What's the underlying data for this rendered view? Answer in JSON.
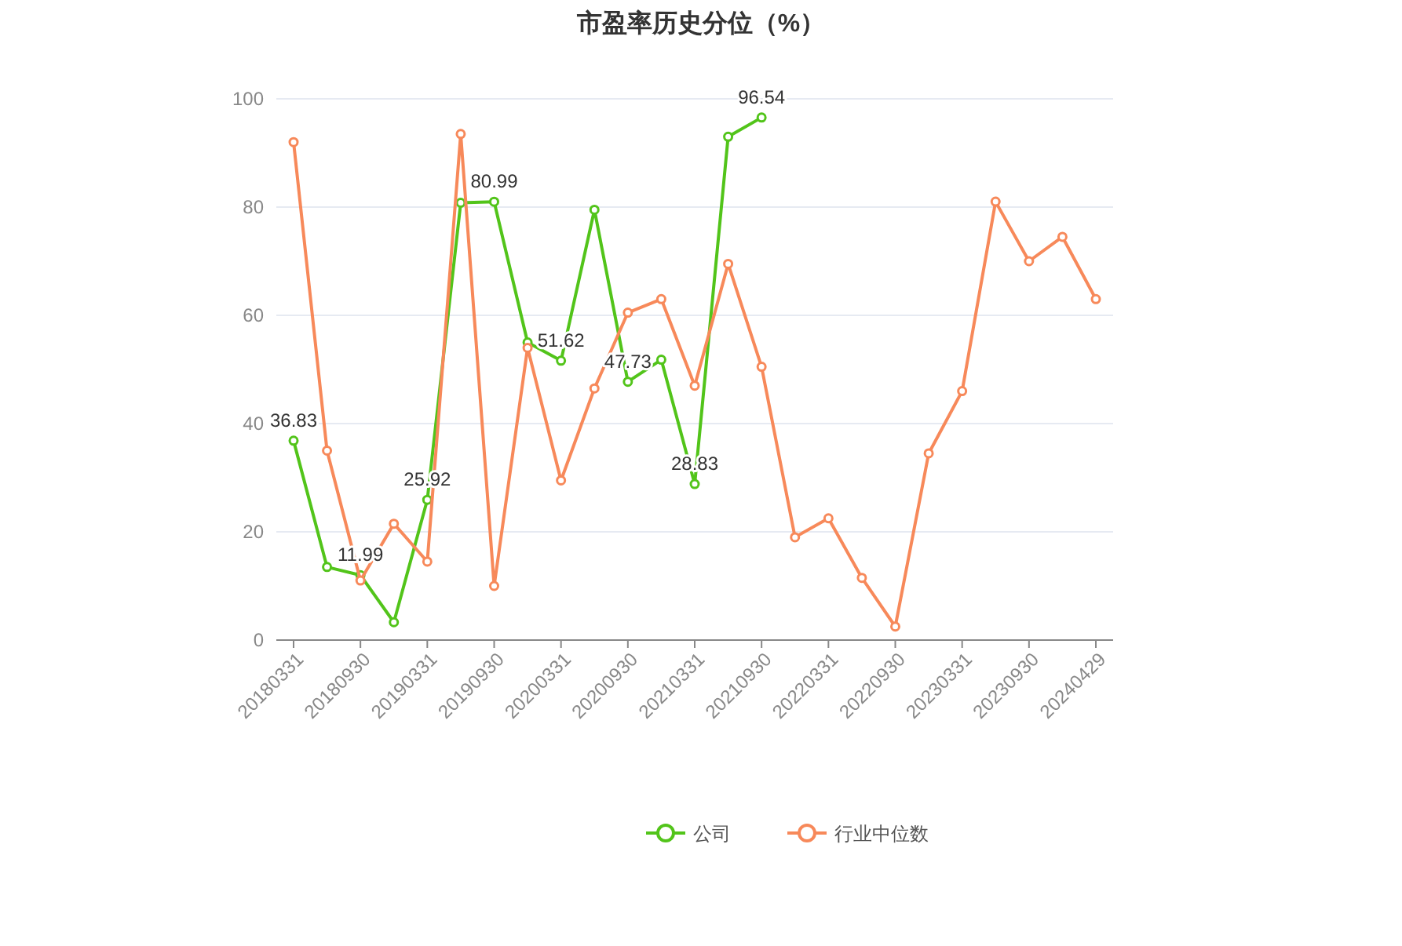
{
  "chart_data": {
    "type": "line",
    "title": "市盈率历史分位（%）",
    "categories": [
      "20180331",
      null,
      "20180930",
      null,
      "20190331",
      null,
      "20190930",
      null,
      "20200331",
      null,
      "20200930",
      null,
      "20210331",
      null,
      "20210930",
      null,
      "20220331",
      null,
      "20220930",
      null,
      "20230331",
      null,
      "20230930",
      null,
      "20240429"
    ],
    "series": [
      {
        "name": "公司",
        "color": "#52c41a",
        "values": [
          36.83,
          13.5,
          11.99,
          3.3,
          25.92,
          80.8,
          80.99,
          55,
          51.62,
          79.5,
          47.73,
          51.8,
          28.83,
          93,
          96.54,
          null,
          null,
          null,
          null,
          null,
          null,
          null,
          null,
          null,
          null
        ],
        "value_labels": [
          "36.83",
          null,
          "11.99",
          null,
          "25.92",
          null,
          "80.99",
          null,
          "51.62",
          null,
          "47.73",
          null,
          "28.83",
          null,
          "96.54",
          null,
          null,
          null,
          null,
          null,
          null,
          null,
          null,
          null,
          null
        ]
      },
      {
        "name": "行业中位数",
        "color": "#f7895a",
        "values": [
          92,
          35,
          11,
          21.5,
          14.5,
          93.5,
          10,
          54,
          29.5,
          46.5,
          60.5,
          63,
          47,
          69.5,
          50.5,
          19,
          22.5,
          11.5,
          2.5,
          34.5,
          46,
          81,
          70,
          74.5,
          63
        ]
      }
    ],
    "ylim": [
      0,
      100
    ],
    "yticks": [
      0,
      20,
      40,
      60,
      80,
      100
    ],
    "grid": "y",
    "legend": "bottom",
    "marker": "circle",
    "line_style": "solid"
  }
}
